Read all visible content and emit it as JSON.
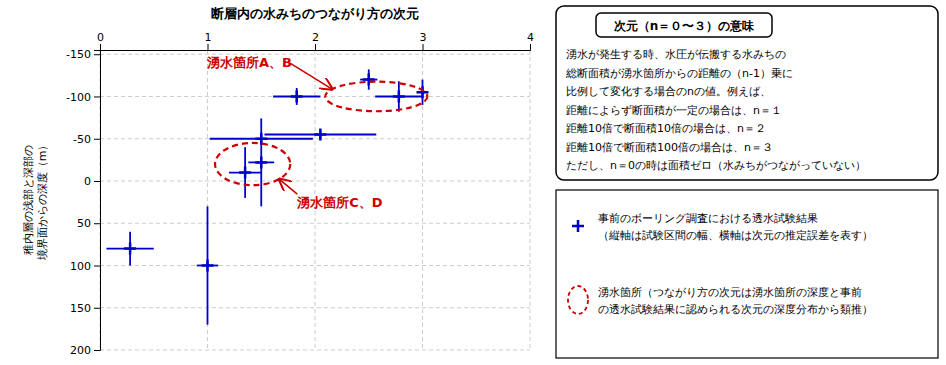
{
  "chart_data": {
    "type": "scatter",
    "title": "断層内の水みちのつながり方の次元",
    "y_label": "稚内層の浅部と深部の\n境界面からの深度（m）",
    "xlim": [
      0,
      4
    ],
    "ylim": [
      200,
      -155
    ],
    "xticks": [
      0,
      1,
      2,
      3,
      4
    ],
    "yticks": [
      -150,
      -100,
      -50,
      0,
      50,
      100,
      150,
      200
    ],
    "grid": true,
    "marker": "plus",
    "color": "#0000cc",
    "x": [
      0.28,
      1.0,
      1.35,
      1.5,
      1.5,
      2.05,
      1.83,
      2.5,
      2.78,
      3.0
    ],
    "values": [
      80,
      100,
      -10,
      -22,
      -50,
      -55,
      -100,
      -120,
      -100,
      -105
    ],
    "x_error": [
      0.22,
      0.1,
      0.15,
      0.12,
      0.48,
      0.52,
      0.22,
      0.08,
      0.22,
      0.05
    ],
    "y_error": [
      20,
      70,
      30,
      52,
      5,
      5,
      10,
      12,
      18,
      15
    ],
    "regions": [
      {
        "label": "湧水箇所A、B",
        "cx": 2.57,
        "cy": -100,
        "width": 0.95,
        "height": 35,
        "color": "#cc0000",
        "line_style": "dashed"
      },
      {
        "label": "湧水箇所C、D",
        "cx": 1.42,
        "cy": -20,
        "width": 0.7,
        "height": 50,
        "color": "#cc0000",
        "line_style": "dashed"
      }
    ],
    "info_title": "次元（n＝０〜３）の意味",
    "info_lines": [
      "湧水が発生する時、水圧が伝搬する水みちの",
      "総断面積が湧水箇所からの距離の（n-1）乗に",
      "比例して変化する場合のnの値。例えば、",
      "距離によらず断面積が一定の場合は、n＝１",
      "距離10倍で断面積10倍の場合は、n＝２",
      "距離10倍で断面積100倍の場合は、n＝３",
      "ただし、n＝0の時は面積ゼロ（水みちがつながっていない）"
    ],
    "legend_entries": [
      [
        "事前のボーリング調査における透水試験結果",
        "（縦軸は試験区間の幅、横軸は次元の推定誤差を表す）"
      ],
      [
        "湧水箇所（つながり方の次元は湧水箇所の深度と事前",
        "の透水試験結果に認められる次元の深度分布から類推）"
      ]
    ]
  }
}
